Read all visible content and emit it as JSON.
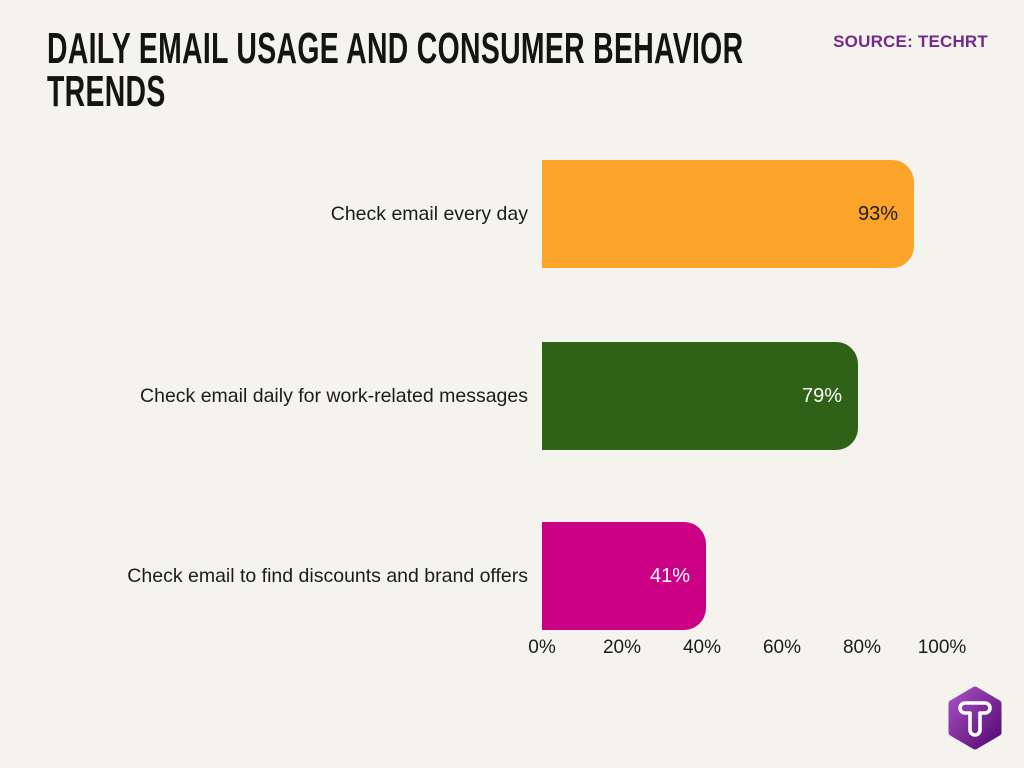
{
  "header": {
    "title": "DAILY EMAIL USAGE AND CONSUMER BEHAVIOR TRENDS",
    "source_label": "SOURCE: TECHRT"
  },
  "colors": {
    "background": "#F4F3ED",
    "title_text": "#141414",
    "source_text": "#76298D",
    "label_text": "#1C1C1C",
    "axis_text": "#1C1C1C"
  },
  "chart_data": {
    "type": "bar",
    "orientation": "horizontal",
    "title": "Daily Email Usage and Consumer Behavior Trends",
    "categories": [
      "Check email every day",
      "Check email daily for work-related messages",
      "Check email to find discounts and brand offers"
    ],
    "values": [
      93,
      79,
      41
    ],
    "value_labels": [
      "93%",
      "79%",
      "41%"
    ],
    "bar_colors": [
      "#FCA42A",
      "#2F6117",
      "#CC0085"
    ],
    "value_label_colors": [
      "#1C1C1C",
      "#FFFFFF",
      "#FFFFFF"
    ],
    "x_ticks": [
      "0%",
      "20%",
      "40%",
      "60%",
      "80%",
      "100%"
    ],
    "xlim": [
      0,
      100
    ],
    "grid": false,
    "legend": false
  },
  "logo": {
    "letter": "T",
    "gradient_start": "#A44FC2",
    "gradient_end": "#560B72"
  }
}
